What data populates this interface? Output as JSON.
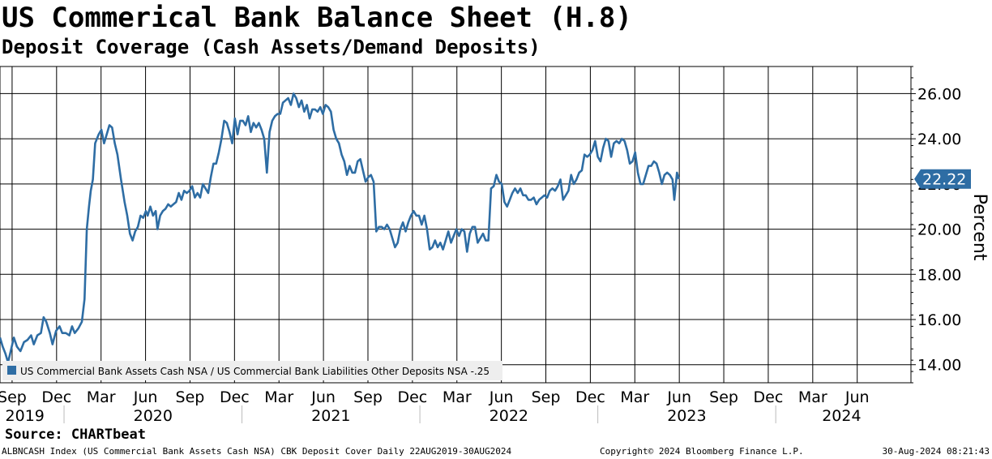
{
  "header": {
    "title": "US Commerical Bank Balance Sheet (H.8)",
    "subtitle": "Deposit Coverage (Cash Assets/Demand Deposits)"
  },
  "source": "Source: CHARTbeat",
  "footer": {
    "left": "ALBNCASH Index (US Commercial Bank Assets Cash NSA) CBK Deposit Cover  Daily 22AUG2019-30AUG2024",
    "middle": "Copyright© 2024 Bloomberg Finance L.P.",
    "right": "30-Aug-2024 08:21:43"
  },
  "colors": {
    "series": "#2e6da4",
    "grid": "#000000",
    "last_value_box": "#2e6da4"
  },
  "chart_data": {
    "type": "line",
    "ylabel": "Percent",
    "ylim": [
      13.2,
      27.2
    ],
    "yticks": [
      14,
      16,
      18,
      20,
      22,
      24,
      26
    ],
    "ytick_labels": [
      "14.00",
      "16.00",
      "18.00",
      "20.00",
      "22.00",
      "24.00",
      "26.00"
    ],
    "xlim": [
      2019.64,
      2024.76
    ],
    "x_month_ticks": [
      {
        "x": 2019.708,
        "label": "Sep"
      },
      {
        "x": 2019.958,
        "label": "Dec"
      },
      {
        "x": 2020.208,
        "label": "Mar"
      },
      {
        "x": 2020.458,
        "label": "Jun"
      },
      {
        "x": 2020.708,
        "label": "Sep"
      },
      {
        "x": 2020.958,
        "label": "Dec"
      },
      {
        "x": 2021.208,
        "label": "Mar"
      },
      {
        "x": 2021.458,
        "label": "Jun"
      },
      {
        "x": 2021.708,
        "label": "Sep"
      },
      {
        "x": 2021.958,
        "label": "Dec"
      },
      {
        "x": 2022.208,
        "label": "Mar"
      },
      {
        "x": 2022.458,
        "label": "Jun"
      },
      {
        "x": 2022.708,
        "label": "Sep"
      },
      {
        "x": 2022.958,
        "label": "Dec"
      },
      {
        "x": 2023.208,
        "label": "Mar"
      },
      {
        "x": 2023.458,
        "label": "Jun"
      },
      {
        "x": 2023.708,
        "label": "Sep"
      },
      {
        "x": 2023.958,
        "label": "Dec"
      },
      {
        "x": 2024.208,
        "label": "Mar"
      },
      {
        "x": 2024.458,
        "label": "Jun"
      }
    ],
    "x_year_labels": [
      {
        "x": 2019.78,
        "label": "2019"
      },
      {
        "x": 2020.5,
        "label": "2020"
      },
      {
        "x": 2021.5,
        "label": "2021"
      },
      {
        "x": 2022.5,
        "label": "2022"
      },
      {
        "x": 2023.5,
        "label": "2023"
      },
      {
        "x": 2024.37,
        "label": "2024"
      }
    ],
    "year_dividers": [
      2020.0,
      2021.0,
      2022.0,
      2023.0,
      2024.0
    ],
    "grid": true,
    "legend": "bottom-left",
    "last_value": 22.22,
    "last_value_label": "22.22",
    "series": [
      {
        "name": "US Commercial Bank Assets Cash NSA / US Commercial Bank Liabilities Other Deposits NSA -.25",
        "points": [
          [
            2019.64,
            15.2
          ],
          [
            2019.655,
            14.8
          ],
          [
            2019.67,
            14.5
          ],
          [
            2019.685,
            14.1
          ],
          [
            2019.7,
            14.6
          ],
          [
            2019.718,
            15.2
          ],
          [
            2019.735,
            14.8
          ],
          [
            2019.755,
            14.6
          ],
          [
            2019.775,
            15.0
          ],
          [
            2019.795,
            15.1
          ],
          [
            2019.815,
            15.3
          ],
          [
            2019.83,
            14.9
          ],
          [
            2019.85,
            15.3
          ],
          [
            2019.87,
            15.4
          ],
          [
            2019.885,
            16.1
          ],
          [
            2019.9,
            15.9
          ],
          [
            2019.92,
            15.4
          ],
          [
            2019.935,
            14.9
          ],
          [
            2019.955,
            15.5
          ],
          [
            2019.975,
            15.7
          ],
          [
            2019.99,
            15.4
          ],
          [
            2020.01,
            15.4
          ],
          [
            2020.03,
            15.3
          ],
          [
            2020.045,
            15.7
          ],
          [
            2020.06,
            15.4
          ],
          [
            2020.08,
            15.6
          ],
          [
            2020.1,
            15.9
          ],
          [
            2020.115,
            16.9
          ],
          [
            2020.128,
            20.0
          ],
          [
            2020.14,
            21.0
          ],
          [
            2020.15,
            21.7
          ],
          [
            2020.162,
            22.2
          ],
          [
            2020.175,
            23.8
          ],
          [
            2020.195,
            24.2
          ],
          [
            2020.21,
            24.4
          ],
          [
            2020.225,
            23.8
          ],
          [
            2020.24,
            24.2
          ],
          [
            2020.255,
            24.6
          ],
          [
            2020.27,
            24.5
          ],
          [
            2020.285,
            23.8
          ],
          [
            2020.3,
            23.3
          ],
          [
            2020.32,
            22.2
          ],
          [
            2020.34,
            21.2
          ],
          [
            2020.355,
            20.6
          ],
          [
            2020.37,
            19.8
          ],
          [
            2020.385,
            19.5
          ],
          [
            2020.4,
            19.9
          ],
          [
            2020.415,
            20.1
          ],
          [
            2020.43,
            20.6
          ],
          [
            2020.445,
            20.5
          ],
          [
            2020.46,
            20.8
          ],
          [
            2020.47,
            20.6
          ],
          [
            2020.485,
            21.0
          ],
          [
            2020.5,
            20.6
          ],
          [
            2020.515,
            20.8
          ],
          [
            2020.525,
            20.0
          ],
          [
            2020.54,
            20.6
          ],
          [
            2020.555,
            20.8
          ],
          [
            2020.57,
            20.9
          ],
          [
            2020.585,
            21.1
          ],
          [
            2020.6,
            21.0
          ],
          [
            2020.615,
            21.1
          ],
          [
            2020.63,
            21.2
          ],
          [
            2020.645,
            21.6
          ],
          [
            2020.66,
            21.3
          ],
          [
            2020.675,
            21.7
          ],
          [
            2020.69,
            21.6
          ],
          [
            2020.705,
            21.7
          ],
          [
            2020.72,
            21.9
          ],
          [
            2020.735,
            21.4
          ],
          [
            2020.75,
            21.6
          ],
          [
            2020.765,
            21.4
          ],
          [
            2020.78,
            22.0
          ],
          [
            2020.795,
            21.8
          ],
          [
            2020.81,
            21.6
          ],
          [
            2020.825,
            22.3
          ],
          [
            2020.84,
            22.9
          ],
          [
            2020.855,
            22.9
          ],
          [
            2020.87,
            23.4
          ],
          [
            2020.885,
            24.0
          ],
          [
            2020.9,
            24.8
          ],
          [
            2020.915,
            24.7
          ],
          [
            2020.93,
            24.3
          ],
          [
            2020.945,
            23.8
          ],
          [
            2020.96,
            24.9
          ],
          [
            2020.975,
            24.2
          ],
          [
            2020.99,
            24.8
          ],
          [
            2021.005,
            24.8
          ],
          [
            2021.02,
            24.6
          ],
          [
            2021.035,
            25.0
          ],
          [
            2021.05,
            24.3
          ],
          [
            2021.065,
            24.7
          ],
          [
            2021.08,
            24.5
          ],
          [
            2021.095,
            24.7
          ],
          [
            2021.11,
            24.4
          ],
          [
            2021.125,
            24.0
          ],
          [
            2021.14,
            22.5
          ],
          [
            2021.155,
            24.3
          ],
          [
            2021.17,
            24.8
          ],
          [
            2021.185,
            25.0
          ],
          [
            2021.2,
            25.1
          ],
          [
            2021.215,
            25.1
          ],
          [
            2021.23,
            25.6
          ],
          [
            2021.245,
            25.7
          ],
          [
            2021.26,
            25.8
          ],
          [
            2021.275,
            25.5
          ],
          [
            2021.29,
            26.0
          ],
          [
            2021.305,
            25.8
          ],
          [
            2021.32,
            25.4
          ],
          [
            2021.335,
            25.7
          ],
          [
            2021.35,
            25.2
          ],
          [
            2021.365,
            25.5
          ],
          [
            2021.38,
            24.9
          ],
          [
            2021.395,
            25.3
          ],
          [
            2021.41,
            25.3
          ],
          [
            2021.425,
            25.2
          ],
          [
            2021.44,
            25.4
          ],
          [
            2021.455,
            25.1
          ],
          [
            2021.47,
            25.5
          ],
          [
            2021.485,
            25.4
          ],
          [
            2021.5,
            25.2
          ],
          [
            2021.515,
            24.4
          ],
          [
            2021.53,
            24.0
          ],
          [
            2021.545,
            23.8
          ],
          [
            2021.56,
            23.3
          ],
          [
            2021.575,
            23.0
          ],
          [
            2021.59,
            22.4
          ],
          [
            2021.605,
            22.8
          ],
          [
            2021.62,
            22.5
          ],
          [
            2021.635,
            22.5
          ],
          [
            2021.65,
            23.0
          ],
          [
            2021.665,
            23.1
          ],
          [
            2021.68,
            22.6
          ],
          [
            2021.695,
            22.1
          ],
          [
            2021.71,
            22.3
          ],
          [
            2021.725,
            22.4
          ],
          [
            2021.74,
            22.1
          ],
          [
            2021.755,
            19.9
          ],
          [
            2021.77,
            20.1
          ],
          [
            2021.785,
            20.1
          ],
          [
            2021.8,
            20.0
          ],
          [
            2021.815,
            20.2
          ],
          [
            2021.83,
            20.0
          ],
          [
            2021.845,
            19.6
          ],
          [
            2021.86,
            19.2
          ],
          [
            2021.875,
            19.4
          ],
          [
            2021.89,
            20.0
          ],
          [
            2021.905,
            20.3
          ],
          [
            2021.92,
            19.9
          ],
          [
            2021.935,
            20.3
          ],
          [
            2021.95,
            20.6
          ],
          [
            2021.965,
            20.8
          ],
          [
            2021.98,
            20.6
          ],
          [
            2021.995,
            20.6
          ],
          [
            2022.01,
            20.2
          ],
          [
            2022.025,
            20.6
          ],
          [
            2022.04,
            20.0
          ],
          [
            2022.055,
            19.1
          ],
          [
            2022.07,
            19.2
          ],
          [
            2022.085,
            19.5
          ],
          [
            2022.1,
            19.2
          ],
          [
            2022.115,
            19.4
          ],
          [
            2022.13,
            19.1
          ],
          [
            2022.145,
            19.5
          ],
          [
            2022.16,
            19.9
          ],
          [
            2022.175,
            19.4
          ],
          [
            2022.19,
            19.7
          ],
          [
            2022.205,
            20.0
          ],
          [
            2022.22,
            19.7
          ],
          [
            2022.235,
            20.0
          ],
          [
            2022.25,
            19.9
          ],
          [
            2022.265,
            19.0
          ],
          [
            2022.28,
            19.8
          ],
          [
            2022.295,
            20.1
          ],
          [
            2022.31,
            20.1
          ],
          [
            2022.325,
            19.4
          ],
          [
            2022.34,
            19.6
          ],
          [
            2022.355,
            19.8
          ],
          [
            2022.37,
            19.5
          ],
          [
            2022.385,
            19.5
          ],
          [
            2022.4,
            21.8
          ],
          [
            2022.415,
            21.9
          ],
          [
            2022.43,
            22.4
          ],
          [
            2022.445,
            22.1
          ],
          [
            2022.46,
            22.0
          ],
          [
            2022.475,
            21.2
          ],
          [
            2022.49,
            21.0
          ],
          [
            2022.505,
            21.3
          ],
          [
            2022.52,
            21.6
          ],
          [
            2022.535,
            21.8
          ],
          [
            2022.55,
            21.6
          ],
          [
            2022.565,
            21.8
          ],
          [
            2022.58,
            21.5
          ],
          [
            2022.595,
            21.5
          ],
          [
            2022.61,
            21.3
          ],
          [
            2022.625,
            21.3
          ],
          [
            2022.64,
            21.4
          ],
          [
            2022.655,
            21.1
          ],
          [
            2022.67,
            21.3
          ],
          [
            2022.685,
            21.4
          ],
          [
            2022.7,
            21.5
          ],
          [
            2022.715,
            21.4
          ],
          [
            2022.73,
            21.7
          ],
          [
            2022.745,
            21.8
          ],
          [
            2022.76,
            21.7
          ],
          [
            2022.775,
            21.9
          ],
          [
            2022.79,
            22.2
          ],
          [
            2022.805,
            21.3
          ],
          [
            2022.82,
            21.5
          ],
          [
            2022.835,
            21.7
          ],
          [
            2022.85,
            22.4
          ],
          [
            2022.865,
            22.0
          ],
          [
            2022.88,
            22.2
          ],
          [
            2022.895,
            22.5
          ],
          [
            2022.91,
            22.6
          ],
          [
            2022.925,
            23.3
          ],
          [
            2022.94,
            23.2
          ],
          [
            2022.955,
            23.3
          ],
          [
            2022.97,
            23.5
          ],
          [
            2022.985,
            23.9
          ],
          [
            2023.0,
            23.2
          ],
          [
            2023.015,
            23.0
          ],
          [
            2023.03,
            23.6
          ],
          [
            2023.045,
            24.0
          ],
          [
            2023.06,
            23.9
          ],
          [
            2023.075,
            23.2
          ],
          [
            2023.09,
            23.8
          ],
          [
            2023.105,
            23.9
          ],
          [
            2023.12,
            23.8
          ],
          [
            2023.135,
            24.0
          ],
          [
            2023.15,
            23.9
          ],
          [
            2023.165,
            23.5
          ],
          [
            2023.18,
            22.9
          ],
          [
            2023.195,
            23.0
          ],
          [
            2023.21,
            23.4
          ],
          [
            2023.225,
            22.5
          ],
          [
            2023.24,
            22.0
          ],
          [
            2023.255,
            22.0
          ],
          [
            2023.27,
            22.4
          ],
          [
            2023.285,
            22.8
          ],
          [
            2023.3,
            22.8
          ],
          [
            2023.315,
            23.0
          ],
          [
            2023.33,
            22.9
          ],
          [
            2023.345,
            22.5
          ],
          [
            2023.36,
            22.0
          ],
          [
            2023.375,
            22.4
          ],
          [
            2023.39,
            22.5
          ],
          [
            2023.405,
            22.4
          ],
          [
            2023.42,
            22.2
          ],
          [
            2023.43,
            21.3
          ],
          [
            2023.445,
            22.5
          ],
          [
            2023.455,
            22.22
          ]
        ]
      }
    ]
  }
}
